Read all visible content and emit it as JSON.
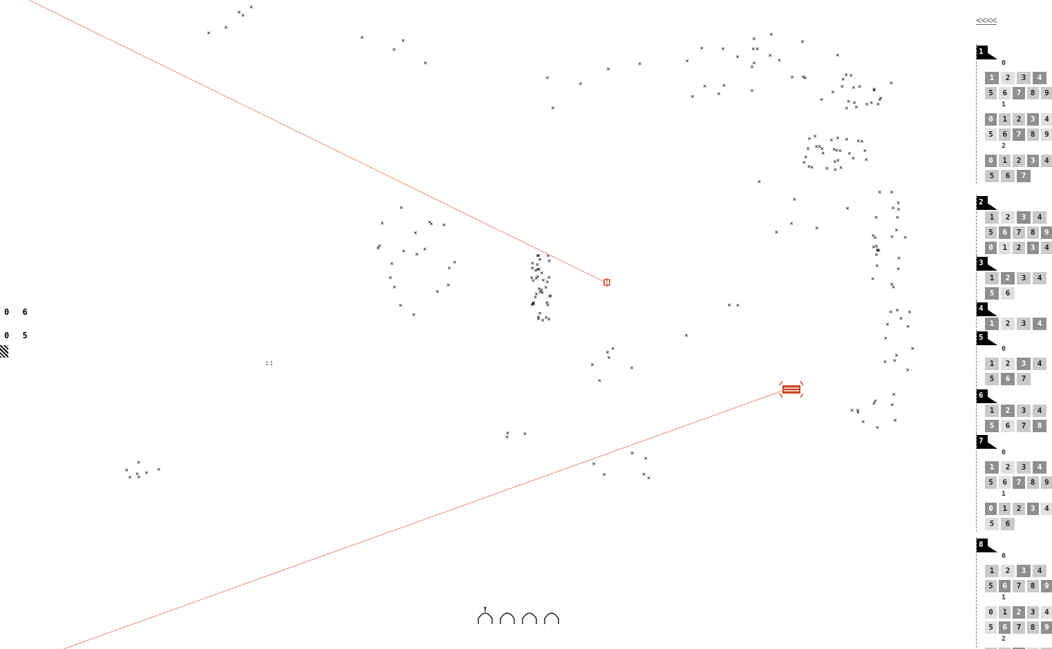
{
  "colors": {
    "beam": "#f0a080",
    "ship": "#cc4422",
    "star": "#000000",
    "tile": "#c9c9c9",
    "tile_dark": "#8f8f8f"
  },
  "hud": {
    "line1": "0 6",
    "line2": "0 5",
    "cursor_glyph": "::"
  },
  "sidebar": {
    "collapse_label": "<<<<",
    "groups": [
      {
        "id": "1",
        "subgroups": [
          {
            "label": "0",
            "rows": [
              [
                "1",
                "2",
                "3",
                "4"
              ],
              [
                "5",
                "6",
                "7",
                "8",
                "9"
              ]
            ]
          },
          {
            "label": "1",
            "rows": [
              [
                "0",
                "1",
                "2",
                "3",
                "4"
              ],
              [
                "5",
                "6",
                "7",
                "8",
                "9"
              ]
            ]
          },
          {
            "label": "2",
            "rows": [
              [
                "0",
                "1",
                "2",
                "3",
                "4"
              ],
              [
                "5",
                "6",
                "7"
              ]
            ]
          }
        ]
      },
      {
        "id": "2",
        "subgroups": [
          {
            "label": "",
            "rows": [
              [
                "1",
                "2",
                "3",
                "4"
              ],
              [
                "5",
                "6",
                "7",
                "8",
                "9"
              ],
              [
                "0",
                "1",
                "2",
                "3",
                "4"
              ]
            ]
          }
        ]
      },
      {
        "id": "3",
        "subgroups": [
          {
            "label": "",
            "rows": [
              [
                "1",
                "2",
                "3",
                "4"
              ],
              [
                "5",
                "6"
              ]
            ]
          }
        ]
      },
      {
        "id": "4",
        "subgroups": [
          {
            "label": "",
            "rows": [
              [
                "1",
                "2",
                "3",
                "4"
              ]
            ]
          }
        ]
      },
      {
        "id": "5",
        "subgroups": [
          {
            "label": "0",
            "rows": [
              [
                "1",
                "2",
                "3",
                "4"
              ],
              [
                "5",
                "6",
                "7"
              ]
            ]
          }
        ]
      },
      {
        "id": "6",
        "subgroups": [
          {
            "label": "",
            "rows": [
              [
                "1",
                "2",
                "3",
                "4"
              ],
              [
                "5",
                "6",
                "7",
                "8"
              ]
            ]
          }
        ]
      },
      {
        "id": "7",
        "subgroups": [
          {
            "label": "0",
            "rows": [
              [
                "1",
                "2",
                "3",
                "4"
              ],
              [
                "5",
                "6",
                "7",
                "8",
                "9"
              ]
            ]
          },
          {
            "label": "1",
            "rows": [
              [
                "0",
                "1",
                "2",
                "3",
                "4"
              ],
              [
                "5",
                "6"
              ]
            ]
          }
        ]
      },
      {
        "id": "8",
        "subgroups": [
          {
            "label": "0",
            "rows": [
              [
                "1",
                "2",
                "3",
                "4"
              ],
              [
                "5",
                "6",
                "7",
                "8",
                "9"
              ]
            ]
          },
          {
            "label": "1",
            "rows": [
              [
                "0",
                "1",
                "2",
                "3",
                "4"
              ],
              [
                "5",
                "6",
                "7",
                "8",
                "9"
              ]
            ]
          },
          {
            "label": "2",
            "rows": [
              [
                "0",
                "1",
                "2",
                "3",
                "4"
              ]
            ]
          }
        ]
      }
    ]
  }
}
